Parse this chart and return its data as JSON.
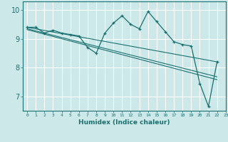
{
  "xlabel": "Humidex (Indice chaleur)",
  "bg_color": "#cce8e8",
  "line_color": "#1a7070",
  "grid_color": "#ffffff",
  "xlim": [
    -0.5,
    23
  ],
  "ylim": [
    6.5,
    10.3
  ],
  "yticks": [
    7,
    8,
    9,
    10
  ],
  "xticks": [
    0,
    1,
    2,
    3,
    4,
    5,
    6,
    7,
    8,
    9,
    10,
    11,
    12,
    13,
    14,
    15,
    16,
    17,
    18,
    19,
    20,
    21,
    22,
    23
  ],
  "series1_x": [
    0,
    1,
    2,
    3,
    4,
    5,
    6,
    7,
    8,
    9,
    10,
    11,
    12,
    13,
    14,
    15,
    16,
    17,
    18,
    19,
    20,
    21,
    22
  ],
  "series1_y": [
    9.4,
    9.4,
    9.2,
    9.3,
    9.2,
    9.15,
    9.1,
    8.7,
    8.5,
    9.2,
    9.55,
    9.8,
    9.5,
    9.35,
    9.95,
    9.6,
    9.25,
    8.9,
    8.8,
    8.75,
    7.45,
    6.65,
    8.2
  ],
  "series2_x": [
    0,
    22
  ],
  "series2_y": [
    9.4,
    8.2
  ],
  "series3_x": [
    0,
    22
  ],
  "series3_y": [
    9.35,
    7.68
  ],
  "series4_x": [
    0,
    22
  ],
  "series4_y": [
    9.32,
    7.58
  ]
}
